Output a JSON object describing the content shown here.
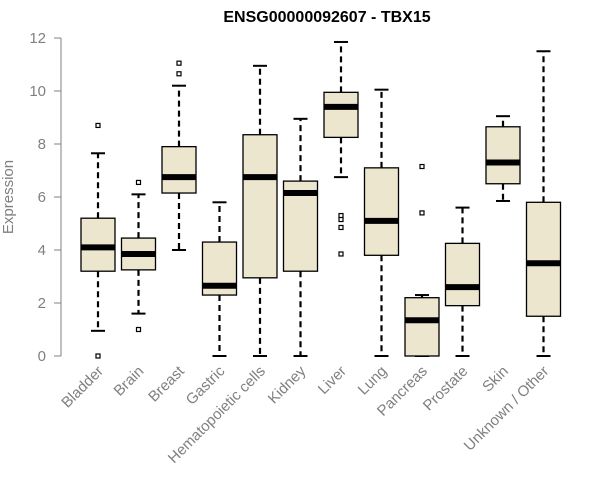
{
  "chart_data": {
    "type": "boxplot",
    "title": "ENSG00000092607 - TBX15",
    "xlabel": "",
    "ylabel": "Expression",
    "ylim": [
      0,
      12
    ],
    "yticks": [
      0,
      2,
      4,
      6,
      8,
      10,
      12
    ],
    "grid": false,
    "box_color": "#EDE6CF",
    "axis_color": "#808080",
    "categories": [
      "Bladder",
      "Brain",
      "Breast",
      "Gastric",
      "Hematopoietic cells",
      "Kidney",
      "Liver",
      "Lung",
      "Pancreas",
      "Prostate",
      "Skin",
      "Unknown / Other"
    ],
    "boxes": [
      {
        "name": "Bladder",
        "whisker_low": 0.95,
        "q1": 3.2,
        "median": 4.1,
        "q3": 5.2,
        "whisker_high": 7.65,
        "outliers": [
          0.0,
          8.7
        ]
      },
      {
        "name": "Brain",
        "whisker_low": 1.6,
        "q1": 3.25,
        "median": 3.85,
        "q3": 4.45,
        "whisker_high": 6.1,
        "outliers": [
          1.0,
          6.55
        ]
      },
      {
        "name": "Breast",
        "whisker_low": 4.0,
        "q1": 6.15,
        "median": 6.75,
        "q3": 7.9,
        "whisker_high": 10.2,
        "outliers": [
          10.65,
          11.05
        ]
      },
      {
        "name": "Gastric",
        "whisker_low": 0.0,
        "q1": 2.3,
        "median": 2.65,
        "q3": 4.3,
        "whisker_high": 5.8,
        "outliers": []
      },
      {
        "name": "Hematopoietic cells",
        "whisker_low": 0.0,
        "q1": 2.95,
        "median": 6.75,
        "q3": 8.35,
        "whisker_high": 10.95,
        "outliers": []
      },
      {
        "name": "Kidney",
        "whisker_low": 0.0,
        "q1": 3.2,
        "median": 6.15,
        "q3": 6.6,
        "whisker_high": 8.95,
        "outliers": []
      },
      {
        "name": "Liver",
        "whisker_low": 6.75,
        "q1": 8.25,
        "median": 9.4,
        "q3": 9.95,
        "whisker_high": 11.85,
        "outliers": [
          5.3,
          5.15,
          4.85,
          3.85
        ]
      },
      {
        "name": "Lung",
        "whisker_low": 0.0,
        "q1": 3.8,
        "median": 5.1,
        "q3": 7.1,
        "whisker_high": 10.05,
        "outliers": []
      },
      {
        "name": "Pancreas",
        "whisker_low": 0.0,
        "q1": 0.0,
        "median": 1.35,
        "q3": 2.2,
        "whisker_high": 2.3,
        "outliers": [
          5.4,
          7.15
        ]
      },
      {
        "name": "Prostate",
        "whisker_low": 0.0,
        "q1": 1.9,
        "median": 2.6,
        "q3": 4.25,
        "whisker_high": 5.6,
        "outliers": []
      },
      {
        "name": "Skin",
        "whisker_low": 5.85,
        "q1": 6.5,
        "median": 7.3,
        "q3": 8.65,
        "whisker_high": 9.05,
        "outliers": []
      },
      {
        "name": "Unknown / Other",
        "whisker_low": 0.0,
        "q1": 1.5,
        "median": 3.5,
        "q3": 5.8,
        "whisker_high": 11.5,
        "outliers": []
      }
    ]
  }
}
